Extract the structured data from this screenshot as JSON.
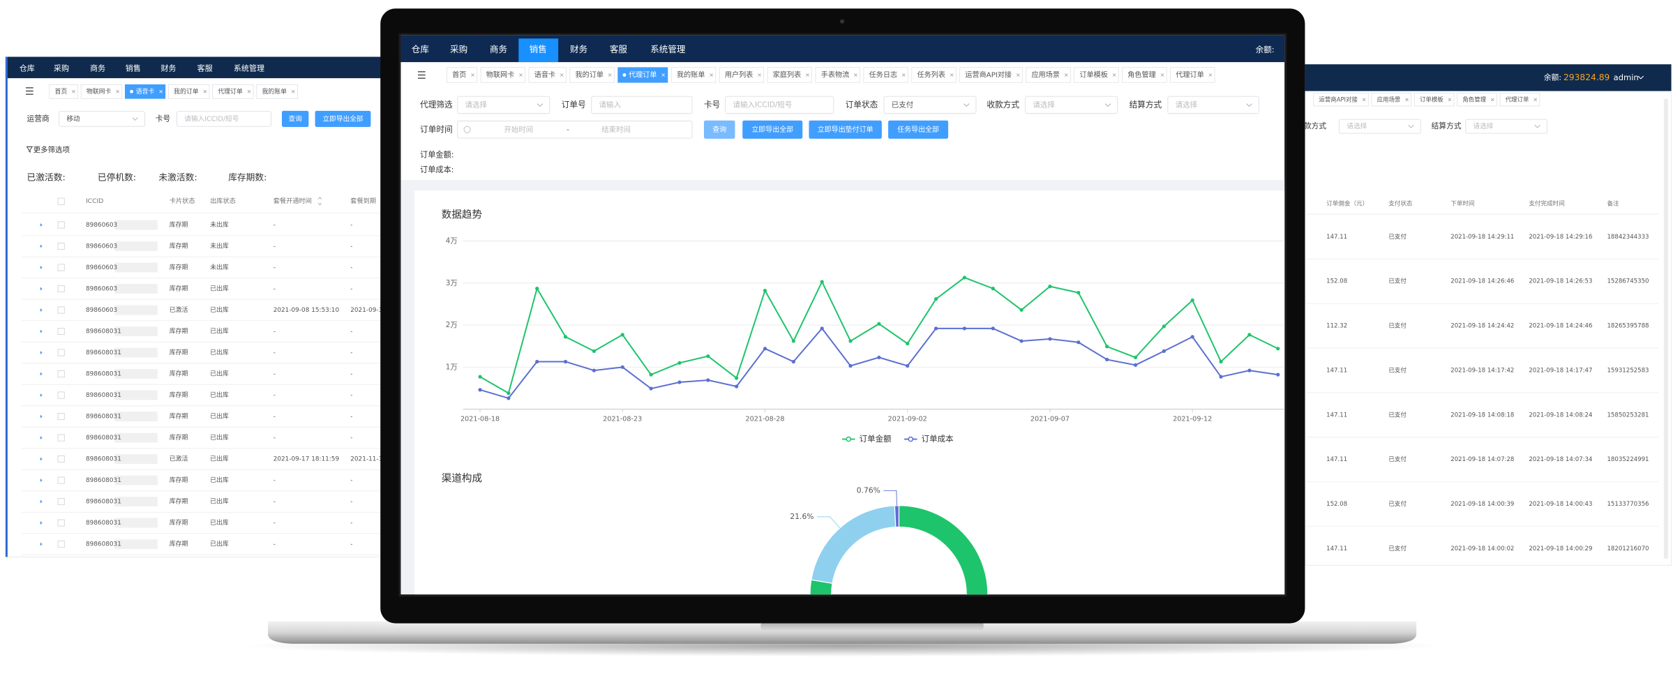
{
  "left_screen": {
    "nav": [
      "仓库",
      "采购",
      "商务",
      "销售",
      "财务",
      "客服",
      "系统管理"
    ],
    "tabs": [
      "首页",
      "物联网卡",
      "语音卡",
      "我的订单",
      "代理订单",
      "我的账单"
    ],
    "filters": [
      {
        "label": "运营商",
        "value": "移动"
      },
      {
        "label": "卡号",
        "placeholder": "请输入ICCID/短号"
      }
    ],
    "buttons": [
      "查询",
      "立即导出全部"
    ],
    "more_filters": "更多筛选项",
    "stats": [
      "已激活数:",
      "已停机数:",
      "未激活数:",
      "库存期数:"
    ],
    "table": {
      "columns": [
        "ICCID",
        "卡片状态",
        "出库状态",
        "套餐开通时间",
        "套餐到期"
      ],
      "rows": [
        [
          "89860603",
          "库存期",
          "未出库",
          "-",
          "-"
        ],
        [
          "89860603",
          "库存期",
          "未出库",
          "-",
          "-"
        ],
        [
          "89860603",
          "库存期",
          "未出库",
          "-",
          "-"
        ],
        [
          "89860603",
          "库存期",
          "已出库",
          "-",
          "-"
        ],
        [
          "89860603",
          "已激活",
          "已出库",
          "2021-09-08 15:53:10",
          "2021-09-3"
        ],
        [
          "898608031",
          "库存期",
          "已出库",
          "-",
          "-"
        ],
        [
          "898608031",
          "库存期",
          "已出库",
          "-",
          "-"
        ],
        [
          "898608031",
          "库存期",
          "已出库",
          "-",
          "-"
        ],
        [
          "898608031",
          "库存期",
          "已出库",
          "-",
          "-"
        ],
        [
          "898608031",
          "库存期",
          "已出库",
          "-",
          "-"
        ],
        [
          "898608031",
          "库存期",
          "已出库",
          "-",
          "-"
        ],
        [
          "898608031",
          "已激活",
          "已出库",
          "2021-09-17 18:11:59",
          "2021-11-3"
        ],
        [
          "898608031",
          "库存期",
          "已出库",
          "-",
          "-"
        ],
        [
          "898608031",
          "库存期",
          "已出库",
          "-",
          "-"
        ],
        [
          "898608031",
          "库存期",
          "已出库",
          "-",
          "-"
        ],
        [
          "898608031",
          "库存期",
          "已出库",
          "-",
          "-"
        ]
      ]
    }
  },
  "right_screen": {
    "balance_label": "余额:",
    "balance": "293824.89",
    "user": "admin",
    "tabs": [
      "运营商API对接",
      "应用场景",
      "订单模板",
      "角色管理",
      "代理订单"
    ],
    "filters": [
      {
        "label": "收款方式",
        "placeholder": "请选择"
      },
      {
        "label": "结算方式",
        "placeholder": "请选择"
      }
    ],
    "table": {
      "columns": [
        "订单佣金（元）",
        "支付状态",
        "下单时间",
        "支付完成时间",
        "备注"
      ],
      "rows": [
        [
          "147.11",
          "已支付",
          "2021-09-18 14:29:11",
          "2021-09-18 14:29:16",
          "18842344333"
        ],
        [
          "152.08",
          "已支付",
          "2021-09-18 14:26:46",
          "2021-09-18 14:26:53",
          "15286745350"
        ],
        [
          "112.32",
          "已支付",
          "2021-09-18 14:24:42",
          "2021-09-18 14:24:46",
          "18265395788"
        ],
        [
          "147.11",
          "已支付",
          "2021-09-18 14:17:42",
          "2021-09-18 14:17:47",
          "15931252583"
        ],
        [
          "147.11",
          "已支付",
          "2021-09-18 14:08:18",
          "2021-09-18 14:08:24",
          "15850253281"
        ],
        [
          "147.11",
          "已支付",
          "2021-09-18 14:07:28",
          "2021-09-18 14:07:34",
          "18035224991"
        ],
        [
          "152.08",
          "已支付",
          "2021-09-18 14:00:39",
          "2021-09-18 14:00:43",
          "15133770356"
        ],
        [
          "147.11",
          "已支付",
          "2021-09-18 14:00:02",
          "2021-09-18 14:00:29",
          "18201216070"
        ]
      ]
    }
  },
  "center_screen": {
    "nav": [
      "仓库",
      "采购",
      "商务",
      "销售",
      "财务",
      "客服",
      "系统管理"
    ],
    "balance_label": "余额:",
    "tabs": [
      "首页",
      "物联网卡",
      "语音卡",
      "我的订单",
      "代理订单",
      "我的账单",
      "用户列表",
      "家庭列表",
      "手表物流",
      "任务日志",
      "任务列表",
      "运营商API对接",
      "应用场景",
      "订单模板",
      "角色管理",
      "代理订单"
    ],
    "filters": [
      {
        "label": "代理筛选",
        "placeholder": "请选择"
      },
      {
        "label": "订单号",
        "placeholder": "请输入"
      },
      {
        "label": "卡号",
        "placeholder": "请输入ICCID/短号"
      },
      {
        "label": "订单状态",
        "value": "已支付"
      },
      {
        "label": "收款方式",
        "placeholder": "请选择"
      },
      {
        "label": "结算方式",
        "placeholder": "请选择"
      }
    ],
    "date_filter": {
      "label": "订单时间",
      "start": "开始时间",
      "separator": "-",
      "end": "结束时间"
    },
    "buttons": [
      "查询",
      "立即导出全部",
      "立即导出垫付订单",
      "任务导出全部"
    ],
    "summary": [
      "订单金额:",
      "订单成本:"
    ]
  },
  "chart_data": [
    {
      "type": "line",
      "title": "数据趋势",
      "categories": [
        "2021-08-18",
        null,
        null,
        null,
        null,
        "2021-08-23",
        null,
        null,
        null,
        null,
        "2021-08-28",
        null,
        null,
        null,
        null,
        "2021-09-02",
        null,
        null,
        null,
        null,
        "2021-09-07",
        null,
        null,
        null,
        null,
        "2021-09-12",
        null,
        null,
        null
      ],
      "series": [
        {
          "name": "订单金额",
          "color": "#1ec46b",
          "values": [
            7700,
            3800,
            28700,
            17200,
            13800,
            17700,
            8200,
            11000,
            12600,
            7400,
            28200,
            16200,
            30300,
            16200,
            20300,
            15600,
            26200,
            31300,
            28700,
            23600,
            29200,
            27700,
            14900,
            12300,
            19700,
            25900,
            11300,
            17700,
            14400
          ]
        },
        {
          "name": "订单成本",
          "color": "#5b6fd1",
          "values": [
            4600,
            2600,
            11300,
            11300,
            9200,
            10000,
            4900,
            6400,
            6900,
            5400,
            14400,
            11300,
            19200,
            10300,
            12300,
            10300,
            19200,
            19200,
            19200,
            16200,
            16700,
            15900,
            11800,
            10500,
            13800,
            17200,
            7700,
            9200,
            8200
          ]
        }
      ],
      "ylim": [
        0,
        40000
      ],
      "yticks": [
        {
          "value": 10000,
          "label": "1万"
        },
        {
          "value": 20000,
          "label": "2万"
        },
        {
          "value": 30000,
          "label": "3万"
        },
        {
          "value": 40000,
          "label": "4万"
        }
      ],
      "grid": true,
      "legend": "bottom"
    },
    {
      "type": "pie",
      "title": "渠道构成",
      "values": [
        77.64,
        21.6,
        0.76
      ],
      "value_labels": [
        null,
        "21.6%",
        "0.76%"
      ],
      "colors": [
        "#1ec46b",
        "#8fd0ef",
        "#5b6fd1"
      ]
    }
  ]
}
